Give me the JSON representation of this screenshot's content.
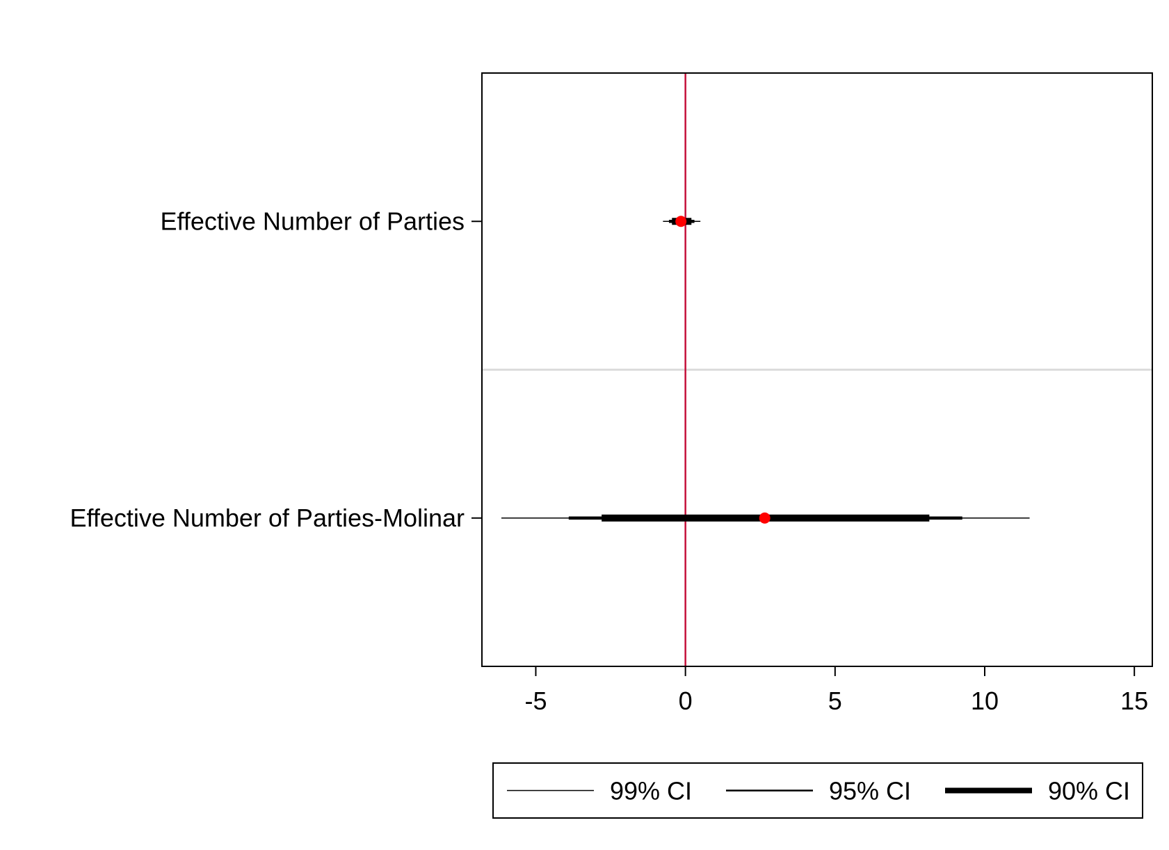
{
  "chart_data": {
    "type": "coefficient-plot",
    "xlim": [
      -6.8,
      15.6
    ],
    "xticks": [
      {
        "value": -5,
        "label": "-5"
      },
      {
        "value": 0,
        "label": "0"
      },
      {
        "value": 5,
        "label": "5"
      },
      {
        "value": 10,
        "label": "10"
      },
      {
        "value": 15,
        "label": "15"
      }
    ],
    "reference_line": {
      "x": 0,
      "color": "#c4103a"
    },
    "point_color": "#ff0000",
    "separator_color": "#dcdcdc",
    "categories": [
      {
        "label": "Effective Number of Parties",
        "estimate": -0.15,
        "ci99": [
          -0.75,
          0.5
        ],
        "ci95": [
          -0.55,
          0.3
        ],
        "ci90": [
          -0.45,
          0.2
        ]
      },
      {
        "label": "Effective Number of Parties-Molinar",
        "estimate": 2.65,
        "ci99": [
          -6.15,
          11.5
        ],
        "ci95": [
          -3.9,
          9.25
        ],
        "ci90": [
          -2.8,
          8.15
        ]
      }
    ],
    "legend": {
      "position": "bottom",
      "entries": [
        {
          "label": "99% CI",
          "width": 1.5
        },
        {
          "label": "95% CI",
          "width": 2.5
        },
        {
          "label": "90% CI",
          "width": 8
        }
      ]
    }
  }
}
